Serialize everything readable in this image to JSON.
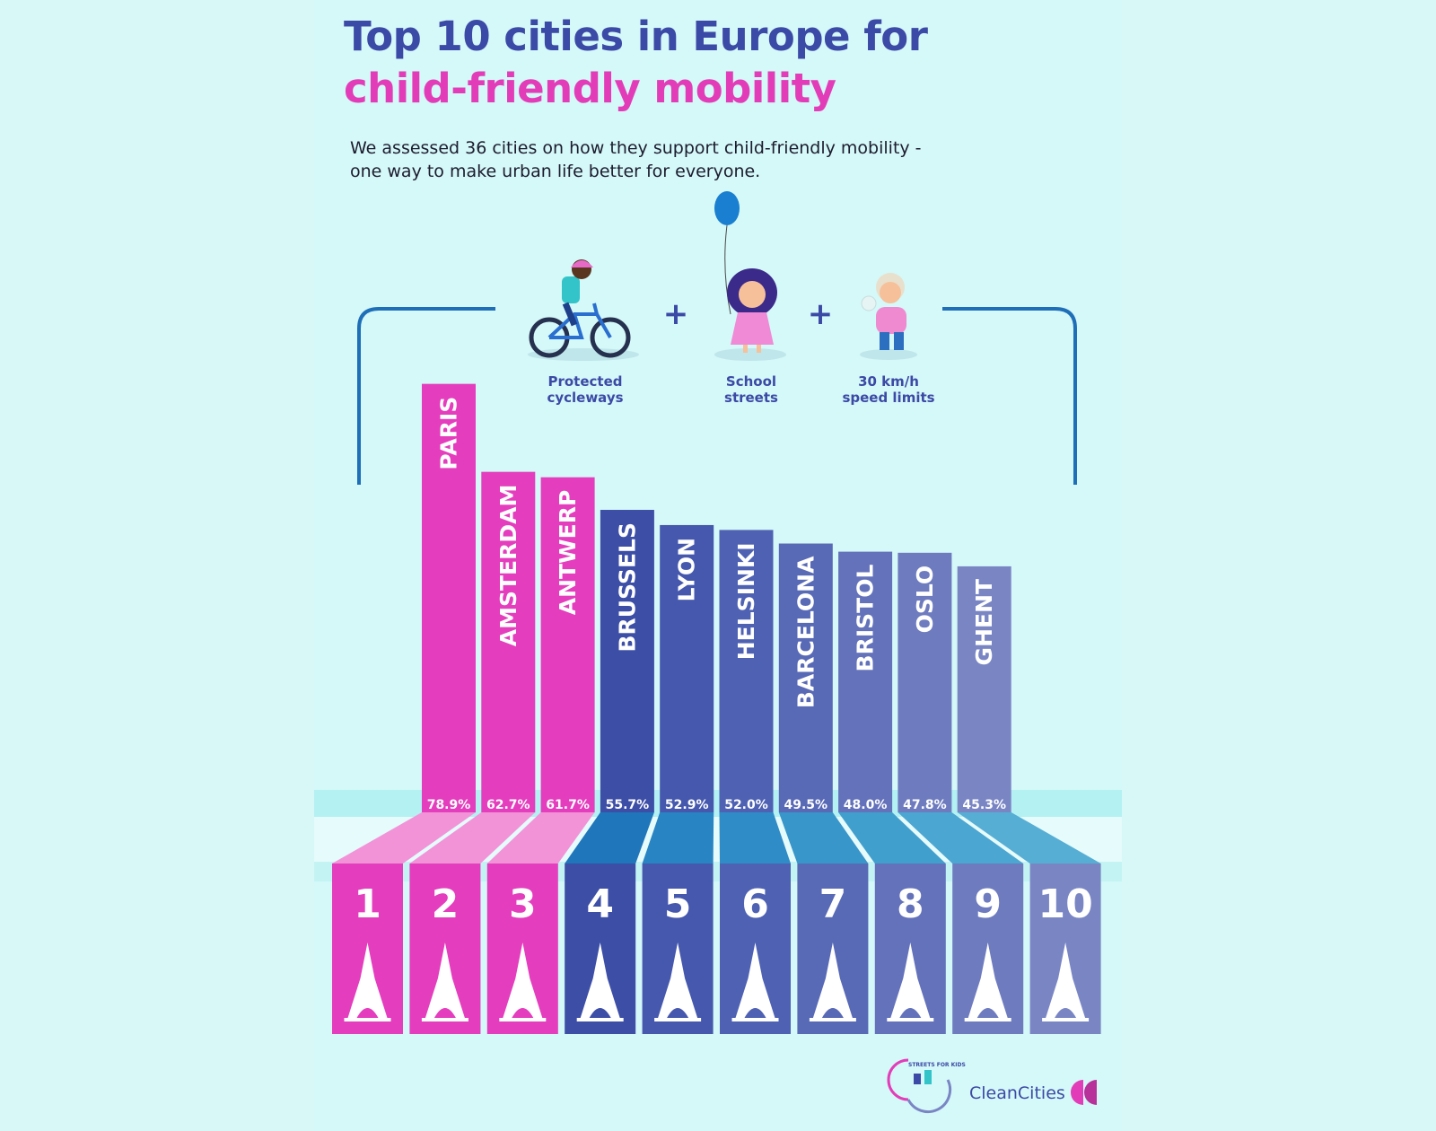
{
  "header": {
    "title_line1": "Top 10 cities in Europe for",
    "title_line2": "child-friendly mobility",
    "subtitle": "We assessed 36 cities on how they support child-friendly mobility - one way to make urban life better for everyone."
  },
  "criteria": [
    {
      "label": "Protected cycleways",
      "icon": "child-on-bike-icon"
    },
    {
      "label": "School streets",
      "icon": "girl-with-balloon-icon"
    },
    {
      "label": "30 km/h speed limits",
      "icon": "toddler-icon"
    }
  ],
  "plus_sign": "+",
  "footer": {
    "partner_logo_text": "STREETS FOR KIDS",
    "brand": "CleanCities"
  },
  "chart_data": {
    "type": "bar",
    "title": "Top 10 cities in Europe for child-friendly mobility",
    "subtitle": "We assessed 36 cities on how they support child-friendly mobility - one way to make urban life better for everyone.",
    "categories": [
      "PARIS",
      "AMSTERDAM",
      "ANTWERP",
      "BRUSSELS",
      "LYON",
      "HELSINKI",
      "BARCELONA",
      "BRISTOL",
      "OSLO",
      "GHENT"
    ],
    "values": [
      78.9,
      62.7,
      61.7,
      55.7,
      52.9,
      52.0,
      49.5,
      48.0,
      47.8,
      45.3
    ],
    "value_labels": [
      "78.9%",
      "62.7%",
      "61.7%",
      "55.7%",
      "52.9%",
      "52.0%",
      "49.5%",
      "48.0%",
      "47.8%",
      "45.3%"
    ],
    "ranks": [
      "1",
      "2",
      "3",
      "4",
      "5",
      "6",
      "7",
      "8",
      "9",
      "10"
    ],
    "landmark_icons": [
      "eiffel-tower-icon",
      "canal-house-icon",
      "brabo-statue-icon",
      "atomium-icon",
      "fourviere-basilica-icon",
      "helsinki-cathedral-icon",
      "sagrada-familia-icon",
      "suspension-bridge-icon",
      "city-hall-icon",
      "cathedral-icon"
    ],
    "bar_colors": [
      "#e43dbd",
      "#e43dbd",
      "#e43dbd",
      "#3d4ea6",
      "#4558ad",
      "#4e61b3",
      "#5869b6",
      "#6372ba",
      "#6e7cbf",
      "#7a86c4"
    ],
    "step_colors": [
      "#f293d8",
      "#f293d8",
      "#f293d8",
      "#1f76bb",
      "#2884c3",
      "#2f8cc6",
      "#3896ca",
      "#419fce",
      "#4ba6d1",
      "#56aed4"
    ],
    "ylim": [
      0,
      80
    ],
    "grid": false,
    "legend": "none"
  }
}
